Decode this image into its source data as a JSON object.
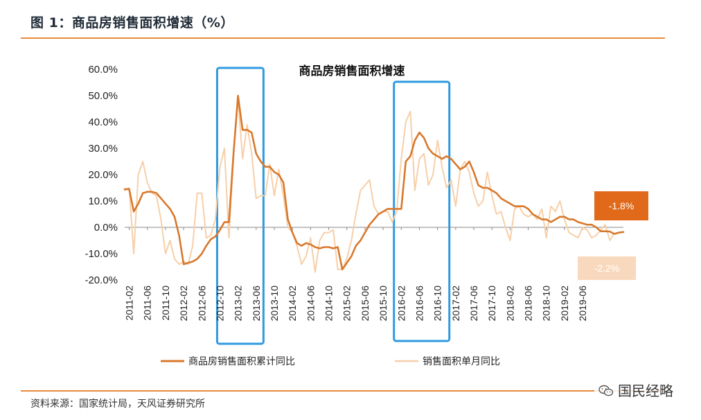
{
  "header": {
    "figure_title": "图 1：商品房销售面积增速（%）"
  },
  "footer": {
    "source": "资料来源：国家统计局，天风证券研究所",
    "watermark": "国民经略"
  },
  "colors": {
    "cumulative": "#d8782c",
    "monthly": "#f7cfa8",
    "highlight_box": "#2f9ae0",
    "rule": "#e88a3c"
  },
  "annotations": {
    "cumulative_latest": {
      "label": "-1.8%",
      "bg": "#e06a1a",
      "fg": "#ffffff"
    },
    "monthly_latest": {
      "label": "-2.2%",
      "bg": "#f9d9bd",
      "fg": "#ffffff"
    }
  },
  "chart_data": {
    "type": "line",
    "title": "商品房销售面积增速",
    "y_axis": {
      "min": -20,
      "max": 60,
      "step": 10,
      "tick_labels": [
        "-20.0%",
        "-10.0%",
        "0.0%",
        "10.0%",
        "20.0%",
        "30.0%",
        "40.0%",
        "50.0%",
        "60.0%"
      ]
    },
    "x_tick_labels": [
      "2011-02",
      "2011-06",
      "2011-10",
      "2012-02",
      "2012-06",
      "2012-10",
      "2013-02",
      "2013-06",
      "2013-10",
      "2014-02",
      "2014-06",
      "2014-10",
      "2015-02",
      "2015-06",
      "2015-10",
      "2016-02",
      "2016-06",
      "2016-10",
      "2017-02",
      "2017-06",
      "2017-10",
      "2018-02",
      "2018-06",
      "2018-10",
      "2019-02",
      "2019-06"
    ],
    "x_start": "2011-01",
    "highlighted_periods": [
      {
        "from": "2012-10",
        "to": "2013-07"
      },
      {
        "from": "2016-01",
        "to": "2016-12"
      }
    ],
    "series": [
      {
        "name": "商品房销售面积累计同比",
        "values": [
          14.5,
          14.5,
          6,
          9,
          13,
          13.5,
          13.5,
          13,
          11,
          9,
          7,
          4,
          -3,
          -14,
          -13.5,
          -13,
          -12,
          -10,
          -7,
          -4.5,
          -3.5,
          -1,
          2,
          2,
          28,
          50,
          37,
          37,
          36,
          28,
          25,
          23,
          23,
          21,
          20,
          17,
          3,
          -2,
          -6,
          -7,
          -6,
          -6.5,
          -7.5,
          -8,
          -7.5,
          -7.5,
          -8,
          -7.5,
          -16,
          -13.5,
          -11,
          -7,
          -5,
          -2,
          1,
          3,
          5,
          6,
          7,
          7,
          7,
          7,
          25,
          27,
          33,
          36,
          34,
          30,
          28,
          27,
          26,
          27,
          26,
          24,
          22,
          23,
          25,
          21,
          16,
          15,
          15,
          14,
          13,
          11,
          10,
          9,
          8,
          8,
          8,
          7,
          5,
          4,
          3,
          3,
          2,
          3,
          4,
          4,
          3,
          3,
          2,
          1.5,
          1,
          1,
          0,
          -1.5,
          -1.5,
          -1.6,
          -2.5,
          -2,
          -1.8
        ]
      },
      {
        "name": "销售面积单月同比",
        "values": [
          14,
          15,
          -10,
          20,
          25,
          17,
          13,
          12,
          3,
          -10,
          -5,
          -12,
          -14,
          -13,
          -14,
          -7,
          13,
          13,
          -4,
          -3,
          3,
          23,
          30,
          -4,
          27,
          49,
          26,
          39,
          28,
          11,
          12,
          12,
          24,
          12,
          22,
          12,
          0,
          -2,
          -7,
          -14,
          -11,
          -4,
          -17,
          -5,
          -2,
          -2,
          -1,
          -16,
          -16,
          -12,
          -5,
          5,
          14,
          16,
          18,
          8,
          5,
          6,
          6,
          2,
          6,
          26,
          40,
          44,
          14,
          26,
          28,
          16,
          20,
          33,
          23,
          15,
          18,
          8,
          22,
          25,
          21,
          13,
          8,
          10,
          21,
          12,
          5,
          6,
          0,
          -5,
          7,
          8,
          5,
          4,
          5,
          3,
          7,
          -4,
          8,
          6,
          10,
          3,
          -2,
          -3,
          -4,
          0,
          -1,
          -4,
          -3,
          -1,
          1,
          -5,
          -2.2
        ]
      }
    ],
    "legend": [
      "商品房销售面积累计同比",
      "销售面积单月同比"
    ]
  }
}
